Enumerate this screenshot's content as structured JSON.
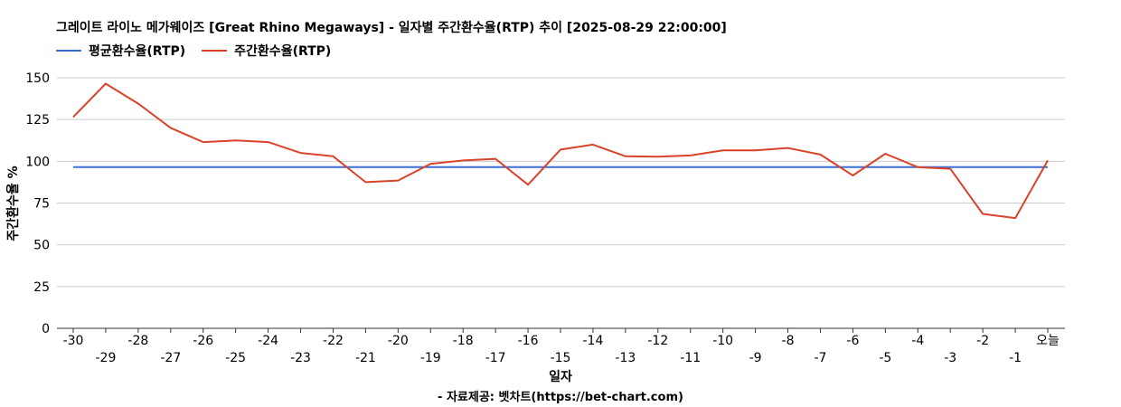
{
  "chart_data": {
    "type": "line",
    "title": "그레이트 라이노 메가웨이즈 [Great Rhino Megaways] - 일자별 주간환수율(RTP) 추이 [2025-08-29 22:00:00]",
    "xlabel": "일자",
    "ylabel": "주간환수율 %",
    "source": "- 자료제공: 벳차트(https://bet-chart.com)",
    "ylim": [
      0,
      150
    ],
    "yticks": [
      0,
      25,
      50,
      75,
      100,
      125,
      150
    ],
    "grid": true,
    "legend_position": "top-left",
    "categories": [
      "-30",
      "-29",
      "-28",
      "-27",
      "-26",
      "-25",
      "-24",
      "-23",
      "-22",
      "-21",
      "-20",
      "-19",
      "-18",
      "-17",
      "-16",
      "-15",
      "-14",
      "-13",
      "-12",
      "-11",
      "-10",
      "-9",
      "-8",
      "-7",
      "-6",
      "-5",
      "-4",
      "-3",
      "-2",
      "-1",
      "오늘"
    ],
    "series": [
      {
        "name": "평균환수율(RTP)",
        "color": "#3a6fd8",
        "values": [
          96.5,
          96.5,
          96.5,
          96.5,
          96.5,
          96.5,
          96.5,
          96.5,
          96.5,
          96.5,
          96.5,
          96.5,
          96.5,
          96.5,
          96.5,
          96.5,
          96.5,
          96.5,
          96.5,
          96.5,
          96.5,
          96.5,
          96.5,
          96.5,
          96.5,
          96.5,
          96.5,
          96.5,
          96.5,
          96.5,
          96.5
        ]
      },
      {
        "name": "주간환수율(RTP)",
        "color": "#d9432a",
        "values": [
          126.5,
          146.5,
          134.5,
          120.0,
          111.5,
          112.5,
          111.5,
          105.0,
          103.0,
          87.5,
          88.5,
          98.5,
          100.5,
          101.5,
          86.0,
          107.0,
          110.0,
          103.0,
          102.8,
          103.5,
          106.5,
          106.5,
          108.0,
          104.0,
          91.5,
          104.5,
          96.5,
          95.5,
          68.5,
          66.0,
          100.5
        ]
      }
    ]
  }
}
